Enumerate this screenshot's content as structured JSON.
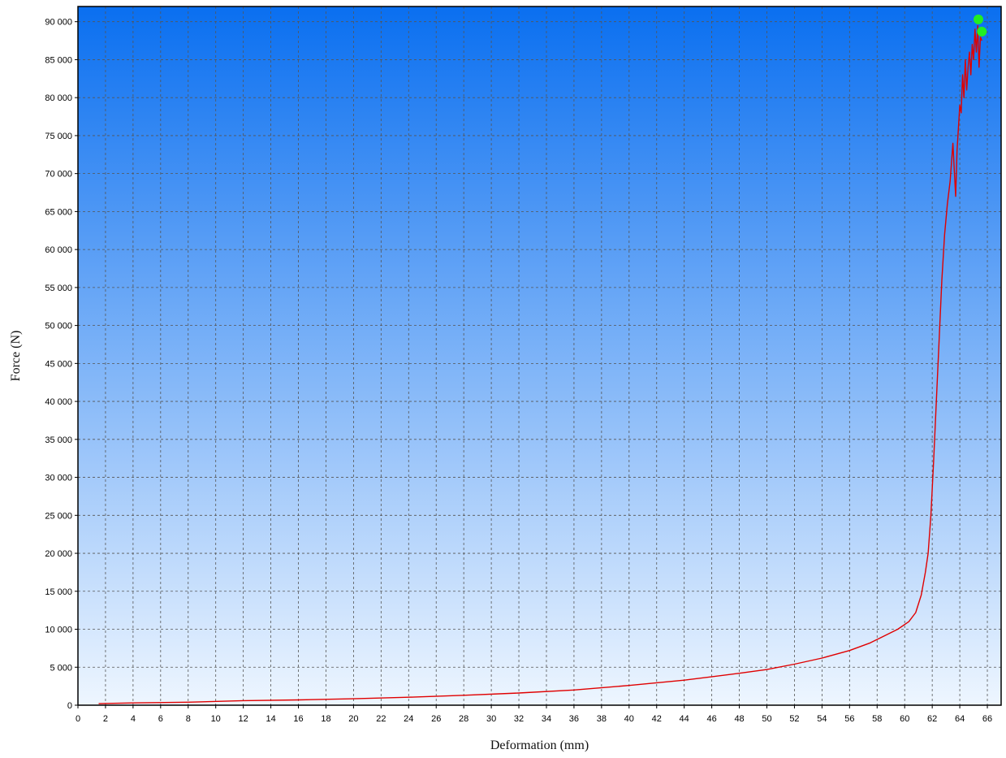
{
  "chart_data": {
    "type": "line",
    "title": "",
    "xlabel": "Deformation (mm)",
    "ylabel": "Force (N)",
    "xlim": [
      0,
      67
    ],
    "ylim": [
      0,
      92000
    ],
    "grid": true,
    "x_ticks": [
      0,
      2,
      4,
      6,
      8,
      10,
      12,
      14,
      16,
      18,
      20,
      22,
      24,
      26,
      28,
      30,
      32,
      34,
      36,
      38,
      40,
      42,
      44,
      46,
      48,
      50,
      52,
      54,
      56,
      58,
      60,
      62,
      64,
      66
    ],
    "x_tick_labels": [
      "0",
      "2",
      "4",
      "6",
      "8",
      "10",
      "12",
      "14",
      "16",
      "18",
      "20",
      "22",
      "24",
      "26",
      "28",
      "30",
      "32",
      "34",
      "36",
      "38",
      "40",
      "42",
      "44",
      "46",
      "48",
      "50",
      "52",
      "54",
      "56",
      "58",
      "60",
      "62",
      "64",
      "66"
    ],
    "y_ticks": [
      0,
      5000,
      10000,
      15000,
      20000,
      25000,
      30000,
      35000,
      40000,
      45000,
      50000,
      55000,
      60000,
      65000,
      70000,
      75000,
      80000,
      85000,
      90000
    ],
    "y_tick_labels": [
      "0",
      "5 000",
      "10 000",
      "15 000",
      "20 000",
      "25 000",
      "30 000",
      "35 000",
      "40 000",
      "45 000",
      "50 000",
      "55 000",
      "60 000",
      "65 000",
      "70 000",
      "75 000",
      "80 000",
      "85 000",
      "90 000"
    ],
    "series": [
      {
        "color": "#e00000",
        "x": [
          1.5,
          4,
          8,
          12,
          16,
          20,
          24,
          28,
          32,
          36,
          40,
          44,
          48,
          50,
          52,
          54,
          56,
          57.5,
          58.5,
          59.5,
          60.3,
          60.8,
          61.2,
          61.5,
          61.7,
          61.9,
          62.1,
          62.3,
          62.5,
          62.7,
          62.9,
          63.1,
          63.3,
          63.5,
          63.7,
          63.8,
          63.9,
          64.0,
          64.1,
          64.2,
          64.3,
          64.4,
          64.5,
          64.6,
          64.7,
          64.8,
          64.9,
          65.0,
          65.1,
          65.2,
          65.3,
          65.4,
          65.5,
          65.6
        ],
        "y": [
          200,
          300,
          400,
          600,
          700,
          850,
          1050,
          1300,
          1600,
          2000,
          2600,
          3300,
          4200,
          4700,
          5400,
          6200,
          7200,
          8200,
          9100,
          10000,
          11000,
          12200,
          14500,
          17500,
          20000,
          25000,
          32000,
          40000,
          48000,
          56000,
          62000,
          66000,
          69000,
          74000,
          67000,
          73000,
          76000,
          79000,
          78000,
          83000,
          80000,
          85000,
          81000,
          84000,
          86000,
          83000,
          87000,
          85000,
          89000,
          86000,
          89500,
          84000,
          88000,
          87500
        ]
      }
    ],
    "markers": [
      {
        "color": "#22ee22",
        "x": 65.35,
        "y": 90300
      },
      {
        "color": "#22ee22",
        "x": 65.6,
        "y": 88700
      }
    ],
    "background": {
      "top": "#0a6ff0",
      "bottom": "#eef6ff"
    },
    "gridline_color": "#555555"
  }
}
